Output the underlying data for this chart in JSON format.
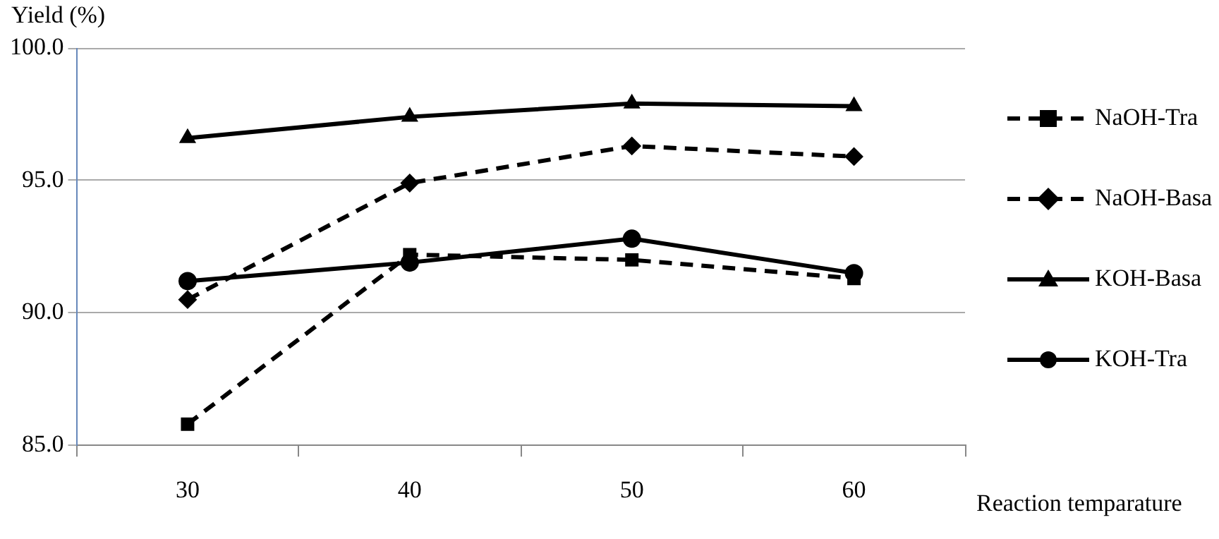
{
  "chart_data": {
    "type": "line",
    "xlabel": "Reaction temparature",
    "ylabel": "Yield (%)",
    "categories": [
      "30",
      "40",
      "50",
      "60"
    ],
    "series": [
      {
        "name": "NaOH-Tra",
        "color": "#000000",
        "marker": "square",
        "line_style": "dashed",
        "values": [
          85.8,
          92.2,
          92.0,
          91.3
        ]
      },
      {
        "name": "NaOH-Basa",
        "color": "#000000",
        "marker": "diamond",
        "line_style": "dashed",
        "values": [
          90.5,
          94.9,
          96.3,
          95.9
        ]
      },
      {
        "name": "KOH-Basa",
        "color": "#000000",
        "marker": "triangle",
        "line_style": "solid",
        "values": [
          96.6,
          97.4,
          97.9,
          97.8
        ]
      },
      {
        "name": "KOH-Tra",
        "color": "#000000",
        "marker": "circle",
        "line_style": "solid",
        "values": [
          91.2,
          91.9,
          92.8,
          91.5
        ]
      }
    ],
    "ylim": [
      85,
      100
    ],
    "yticks": [
      {
        "value": 85,
        "label": "85.0"
      },
      {
        "value": 90,
        "label": "90.0"
      },
      {
        "value": 95,
        "label": "95.0"
      },
      {
        "value": 100,
        "label": "100.0"
      }
    ],
    "grid": "y",
    "legend": "right"
  }
}
